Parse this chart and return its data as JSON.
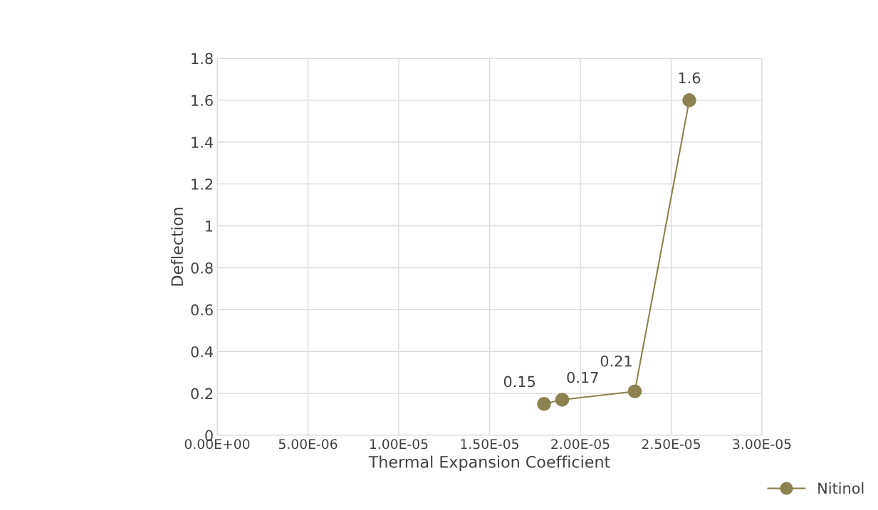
{
  "chart_data": {
    "type": "line",
    "xlabel": "Thermal Expansion Coefficient",
    "ylabel": "Deflection",
    "x": [
      1.8e-05,
      1.9e-05,
      2.3e-05,
      2.6e-05
    ],
    "series": [
      {
        "name": "Nitinol",
        "color": "#8c8150",
        "values": [
          0.15,
          0.17,
          0.21,
          1.6
        ]
      }
    ],
    "line_style": "solid",
    "marker": "circle",
    "data_labels": true,
    "grid": true,
    "legend": "bottom right",
    "xlim": [
      0,
      3e-05
    ],
    "xticks": [
      {
        "value": 0,
        "label": "0.00E+00"
      },
      {
        "value": 5e-06,
        "label": "5.00E-06"
      },
      {
        "value": 1e-05,
        "label": "1.00E-05"
      },
      {
        "value": 1.5e-05,
        "label": "1.50E-05"
      },
      {
        "value": 2e-05,
        "label": "2.00E-05"
      },
      {
        "value": 2.5e-05,
        "label": "2.50E-05"
      },
      {
        "value": 3e-05,
        "label": "3.00E-05"
      }
    ],
    "ylim": [
      0,
      1.8
    ],
    "yticks": [
      0,
      0.2,
      0.4,
      0.6,
      0.8,
      1,
      1.2,
      1.4,
      1.6,
      1.8
    ]
  }
}
